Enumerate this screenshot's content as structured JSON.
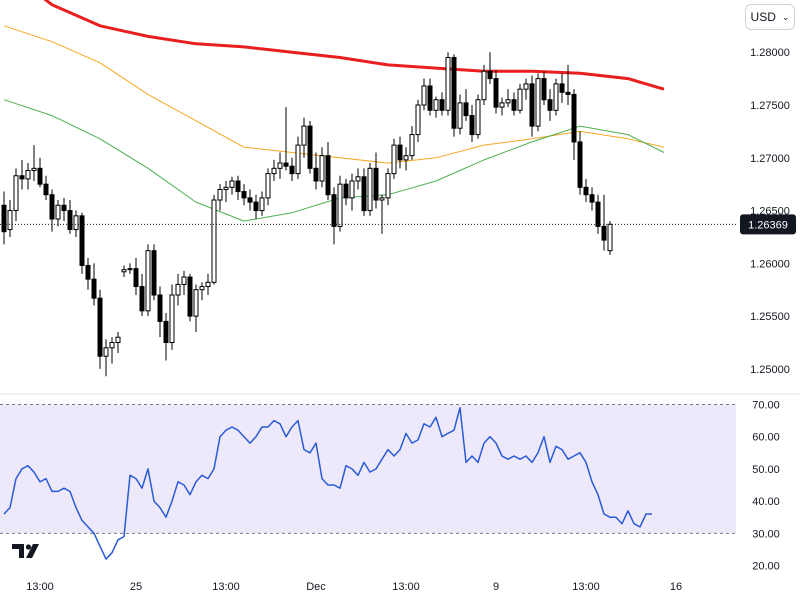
{
  "currency": {
    "label": "USD",
    "chevron": "chevron-down-icon"
  },
  "logo": "tradingview-logo-icon",
  "colors": {
    "candle": "#000000",
    "ma_red": "#e91e1e",
    "ma_orange": "#f5a623",
    "ma_green": "#4caf50",
    "rsi_line": "#2a5bd7",
    "rsi_band": "#ede9fb",
    "last_price_bg": "#131722"
  },
  "chart_data": [
    {
      "type": "candlestick",
      "ylim": [
        1.248,
        1.284
      ],
      "yticks": [
        "1.28000",
        "1.27500",
        "1.27000",
        "1.26500",
        "1.26000",
        "1.25500",
        "1.25000"
      ],
      "ytick_values": [
        1.28,
        1.275,
        1.27,
        1.265,
        1.26,
        1.255,
        1.25
      ],
      "last_price": "1.26369",
      "last_price_value": 1.26369,
      "xticks": [
        "13:00",
        "25",
        "13:00",
        "Dec",
        "13:00",
        "9",
        "13:00",
        "16"
      ],
      "xtick_index": [
        6,
        22,
        37,
        52,
        67,
        82,
        97,
        112
      ],
      "candles": [
        [
          1.2655,
          1.2668,
          1.2618,
          1.263
        ],
        [
          1.2632,
          1.266,
          1.2625,
          1.265
        ],
        [
          1.265,
          1.269,
          1.264,
          1.2683
        ],
        [
          1.2683,
          1.2698,
          1.267,
          1.268
        ],
        [
          1.268,
          1.2695,
          1.267,
          1.2688
        ],
        [
          1.2688,
          1.2712,
          1.2678,
          1.269
        ],
        [
          1.269,
          1.27,
          1.2672,
          1.2675
        ],
        [
          1.2675,
          1.2683,
          1.266,
          1.2665
        ],
        [
          1.2665,
          1.267,
          1.263,
          1.2642
        ],
        [
          1.2642,
          1.266,
          1.2635,
          1.2655
        ],
        [
          1.2655,
          1.2662,
          1.264,
          1.265
        ],
        [
          1.265,
          1.266,
          1.2628,
          1.2632
        ],
        [
          1.2632,
          1.265,
          1.2625,
          1.2645
        ],
        [
          1.2645,
          1.2648,
          1.259,
          1.2598
        ],
        [
          1.2598,
          1.2605,
          1.2575,
          1.2585
        ],
        [
          1.2585,
          1.26,
          1.256,
          1.2567
        ],
        [
          1.2567,
          1.2575,
          1.25,
          1.2512
        ],
        [
          1.2512,
          1.2528,
          1.2493,
          1.252
        ],
        [
          1.252,
          1.253,
          1.2505,
          1.2525
        ],
        [
          1.2525,
          1.2535,
          1.2515,
          1.253
        ],
        [
          1.2592,
          1.2598,
          1.2587,
          1.2594
        ],
        [
          1.2594,
          1.26,
          1.259,
          1.2595
        ],
        [
          1.2595,
          1.2605,
          1.257,
          1.2578
        ],
        [
          1.2578,
          1.259,
          1.255,
          1.2555
        ],
        [
          1.2555,
          1.2618,
          1.255,
          1.2612
        ],
        [
          1.2612,
          1.2618,
          1.2565,
          1.257
        ],
        [
          1.257,
          1.2578,
          1.253,
          1.2545
        ],
        [
          1.2545,
          1.2553,
          1.2508,
          1.2525
        ],
        [
          1.2525,
          1.258,
          1.2518,
          1.257
        ],
        [
          1.257,
          1.259,
          1.256,
          1.258
        ],
        [
          1.258,
          1.2593,
          1.257,
          1.2587
        ],
        [
          1.2587,
          1.259,
          1.2545,
          1.255
        ],
        [
          1.255,
          1.258,
          1.2535,
          1.2575
        ],
        [
          1.2575,
          1.2582,
          1.2565,
          1.2578
        ],
        [
          1.2578,
          1.259,
          1.257,
          1.2582
        ],
        [
          1.2582,
          1.2665,
          1.258,
          1.266
        ],
        [
          1.266,
          1.2675,
          1.265,
          1.267
        ],
        [
          1.267,
          1.2678,
          1.2658,
          1.2672
        ],
        [
          1.2672,
          1.2682,
          1.2665,
          1.2678
        ],
        [
          1.2678,
          1.2683,
          1.266,
          1.2668
        ],
        [
          1.2668,
          1.2675,
          1.2655,
          1.2662
        ],
        [
          1.2662,
          1.267,
          1.265,
          1.2658
        ],
        [
          1.2658,
          1.2665,
          1.2642,
          1.265
        ],
        [
          1.265,
          1.2668,
          1.2645,
          1.2662
        ],
        [
          1.2662,
          1.269,
          1.2655,
          1.2685
        ],
        [
          1.2685,
          1.2698,
          1.2678,
          1.269
        ],
        [
          1.269,
          1.2705,
          1.268,
          1.2695
        ],
        [
          1.2695,
          1.2748,
          1.2688,
          1.2692
        ],
        [
          1.2692,
          1.27,
          1.2678,
          1.2685
        ],
        [
          1.2685,
          1.272,
          1.268,
          1.2712
        ],
        [
          1.2712,
          1.2738,
          1.27,
          1.273
        ],
        [
          1.273,
          1.2735,
          1.2685,
          1.269
        ],
        [
          1.269,
          1.2705,
          1.267,
          1.2678
        ],
        [
          1.2678,
          1.271,
          1.2672,
          1.2702
        ],
        [
          1.2702,
          1.2715,
          1.266,
          1.2665
        ],
        [
          1.2665,
          1.2672,
          1.2618,
          1.2635
        ],
        [
          1.2635,
          1.2683,
          1.263,
          1.2675
        ],
        [
          1.2675,
          1.268,
          1.2655,
          1.2662
        ],
        [
          1.2662,
          1.2685,
          1.265,
          1.2678
        ],
        [
          1.2678,
          1.269,
          1.267,
          1.2682
        ],
        [
          1.2682,
          1.269,
          1.2645,
          1.265
        ],
        [
          1.265,
          1.2695,
          1.2645,
          1.269
        ],
        [
          1.269,
          1.2705,
          1.2652,
          1.266
        ],
        [
          1.266,
          1.2665,
          1.2628,
          1.2662
        ],
        [
          1.2662,
          1.269,
          1.2655,
          1.2685
        ],
        [
          1.2685,
          1.2718,
          1.268,
          1.2712
        ],
        [
          1.2712,
          1.272,
          1.269,
          1.2698
        ],
        [
          1.2698,
          1.271,
          1.2688,
          1.2702
        ],
        [
          1.2702,
          1.273,
          1.2698,
          1.2722
        ],
        [
          1.2722,
          1.2755,
          1.2715,
          1.275
        ],
        [
          1.275,
          1.2775,
          1.2745,
          1.2768
        ],
        [
          1.2768,
          1.2775,
          1.274,
          1.2745
        ],
        [
          1.2745,
          1.2758,
          1.2738,
          1.2755
        ],
        [
          1.2755,
          1.2762,
          1.274,
          1.2745
        ],
        [
          1.2745,
          1.28,
          1.274,
          1.2795
        ],
        [
          1.2795,
          1.2798,
          1.272,
          1.2728
        ],
        [
          1.2728,
          1.276,
          1.2722,
          1.2752
        ],
        [
          1.2752,
          1.2765,
          1.2735,
          1.274
        ],
        [
          1.274,
          1.275,
          1.2715,
          1.2722
        ],
        [
          1.2722,
          1.276,
          1.2718,
          1.2755
        ],
        [
          1.2755,
          1.2788,
          1.275,
          1.2782
        ],
        [
          1.2782,
          1.28,
          1.277,
          1.2775
        ],
        [
          1.2775,
          1.2783,
          1.2742,
          1.2748
        ],
        [
          1.2748,
          1.2757,
          1.274,
          1.2752
        ],
        [
          1.2752,
          1.2765,
          1.2748,
          1.2755
        ],
        [
          1.2755,
          1.2762,
          1.274,
          1.2745
        ],
        [
          1.2745,
          1.277,
          1.2742,
          1.2765
        ],
        [
          1.2765,
          1.2775,
          1.2755,
          1.277
        ],
        [
          1.277,
          1.2778,
          1.272,
          1.273
        ],
        [
          1.273,
          1.278,
          1.2725,
          1.2775
        ],
        [
          1.2775,
          1.2782,
          1.275,
          1.2755
        ],
        [
          1.2755,
          1.2765,
          1.2735,
          1.2745
        ],
        [
          1.2745,
          1.2775,
          1.274,
          1.277
        ],
        [
          1.277,
          1.278,
          1.2752,
          1.2762
        ],
        [
          1.2762,
          1.2788,
          1.275,
          1.276
        ],
        [
          1.276,
          1.2765,
          1.2698,
          1.2715
        ],
        [
          1.2715,
          1.2725,
          1.2665,
          1.2672
        ],
        [
          1.2672,
          1.268,
          1.2658,
          1.2665
        ],
        [
          1.2665,
          1.2672,
          1.265,
          1.2658
        ],
        [
          1.2658,
          1.2665,
          1.2628,
          1.2635
        ],
        [
          1.2635,
          1.2665,
          1.2612,
          1.2622
        ],
        [
          1.2612,
          1.264,
          1.2608,
          1.2637
        ]
      ],
      "moving_averages": [
        {
          "color": "#e91e1e",
          "points": [
            [
              0,
              1.288
            ],
            [
              8,
              1.2845
            ],
            [
              16,
              1.2825
            ],
            [
              24,
              1.2815
            ],
            [
              32,
              1.2808
            ],
            [
              40,
              1.2805
            ],
            [
              48,
              1.28
            ],
            [
              56,
              1.2795
            ],
            [
              64,
              1.2788
            ],
            [
              72,
              1.2785
            ],
            [
              80,
              1.2782
            ],
            [
              88,
              1.2782
            ],
            [
              96,
              1.278
            ],
            [
              104,
              1.2775
            ],
            [
              110,
              1.2765
            ]
          ]
        },
        {
          "color": "#f5a623",
          "points": [
            [
              0,
              1.2825
            ],
            [
              8,
              1.281
            ],
            [
              16,
              1.279
            ],
            [
              24,
              1.276
            ],
            [
              32,
              1.2735
            ],
            [
              40,
              1.271
            ],
            [
              48,
              1.2705
            ],
            [
              56,
              1.27
            ],
            [
              64,
              1.2695
            ],
            [
              72,
              1.27
            ],
            [
              80,
              1.2712
            ],
            [
              88,
              1.2718
            ],
            [
              96,
              1.2725
            ],
            [
              104,
              1.2718
            ],
            [
              110,
              1.271
            ]
          ]
        },
        {
          "color": "#4caf50",
          "points": [
            [
              0,
              1.2755
            ],
            [
              8,
              1.274
            ],
            [
              16,
              1.2718
            ],
            [
              24,
              1.269
            ],
            [
              32,
              1.2658
            ],
            [
              40,
              1.264
            ],
            [
              48,
              1.2648
            ],
            [
              56,
              1.2662
            ],
            [
              64,
              1.2665
            ],
            [
              72,
              1.2678
            ],
            [
              80,
              1.2698
            ],
            [
              88,
              1.2715
            ],
            [
              96,
              1.273
            ],
            [
              104,
              1.2722
            ],
            [
              110,
              1.2705
            ]
          ]
        }
      ]
    },
    {
      "type": "line",
      "ylim": [
        18,
        72
      ],
      "band": [
        30,
        70
      ],
      "yticks": [
        "70.00",
        "60.00",
        "50.00",
        "40.00",
        "30.00",
        "20.00"
      ],
      "ytick_values": [
        70,
        60,
        50,
        40,
        30,
        20
      ],
      "values": [
        36,
        38,
        47,
        50,
        51,
        49,
        46,
        47,
        43,
        43,
        44,
        43,
        38,
        34,
        32,
        30,
        26,
        22,
        24,
        28,
        29,
        48,
        47,
        44,
        50,
        40,
        38,
        35,
        40,
        46,
        45,
        42,
        46,
        48,
        47,
        50,
        60,
        62,
        63,
        62,
        60,
        58,
        60,
        63,
        63,
        65,
        64,
        60,
        63,
        65,
        56,
        55,
        58,
        47,
        45,
        45,
        44,
        51,
        50,
        48,
        52,
        49,
        50,
        53,
        56,
        54,
        56,
        61,
        58,
        59,
        64,
        63,
        66,
        60,
        61,
        62,
        69,
        52,
        54,
        52,
        58,
        60,
        58,
        54,
        53,
        54,
        53,
        54,
        52,
        55,
        60,
        52,
        57,
        56,
        53,
        54,
        55,
        52,
        46,
        42,
        36,
        35,
        35,
        33,
        37,
        33,
        32,
        36,
        36
      ]
    }
  ]
}
